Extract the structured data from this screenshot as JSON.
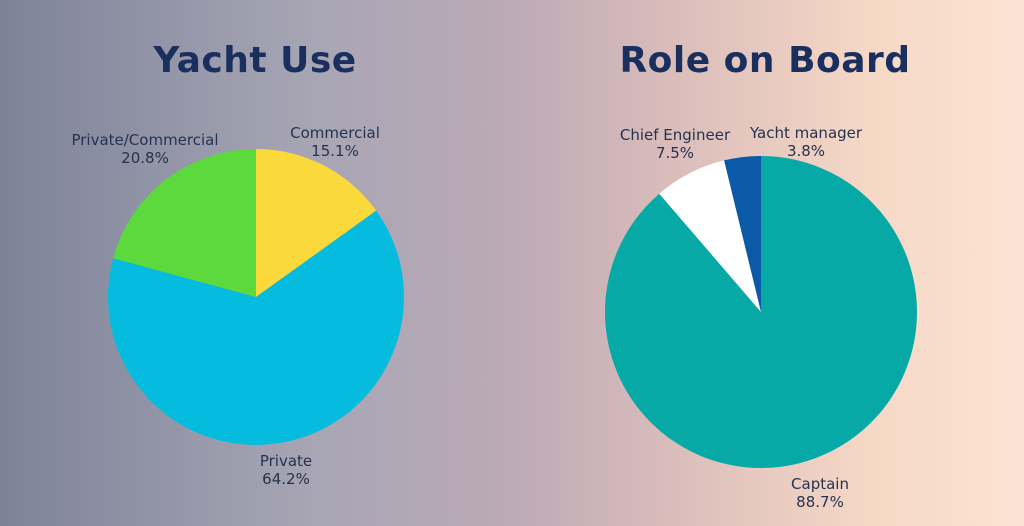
{
  "chart_data": [
    {
      "type": "pie",
      "title": "Yacht Use",
      "categories": [
        "Commercial",
        "Private",
        "Private/Commercial"
      ],
      "values": [
        15.1,
        64.2,
        20.8
      ],
      "colors": [
        "#fbd93b",
        "#06bcde",
        "#5bd93d"
      ],
      "labels": [
        {
          "name": "Commercial",
          "value": "15.1%"
        },
        {
          "name": "Private",
          "value": "64.2%"
        },
        {
          "name": "Private/Commercial",
          "value": "20.8%"
        }
      ],
      "start_angle_deg": 0,
      "direction": "clockwise"
    },
    {
      "type": "pie",
      "title": "Role on Board",
      "categories": [
        "Captain",
        "Chief Engineer",
        "Yacht manager"
      ],
      "values": [
        88.7,
        7.5,
        3.8
      ],
      "colors": [
        "#06a9a6",
        "#ffffff",
        "#0a5aa8"
      ],
      "labels": [
        {
          "name": "Captain",
          "value": "88.7%"
        },
        {
          "name": "Chief Engineer",
          "value": "7.5%"
        },
        {
          "name": "Yacht manager",
          "value": "3.8%"
        }
      ],
      "start_angle_deg": 0,
      "direction": "clockwise"
    }
  ]
}
